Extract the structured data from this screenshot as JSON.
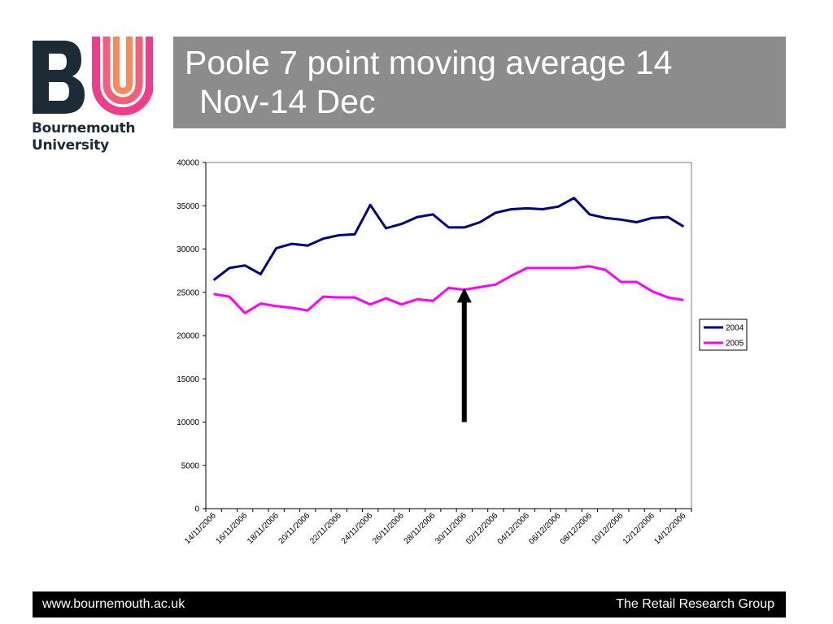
{
  "logo": {
    "line1": "Bournemouth",
    "line2": "University",
    "colors": {
      "b": "#1d2b36",
      "u_outer": "#ee3d8b",
      "u_inner": "#f47b57"
    }
  },
  "header": {
    "title_line1": "Poole 7 point moving average 14",
    "title_line2": "Nov-14 Dec",
    "bar_color": "#8c8c8c"
  },
  "chart_data": {
    "type": "line",
    "title": "",
    "xlabel": "",
    "ylabel": "",
    "ylim": [
      0,
      40000
    ],
    "yticks": [
      0,
      5000,
      10000,
      15000,
      20000,
      25000,
      30000,
      35000,
      40000
    ],
    "x": [
      "14/11/2006",
      "15/11/2006",
      "16/11/2006",
      "17/11/2006",
      "18/11/2006",
      "19/11/2006",
      "20/11/2006",
      "21/11/2006",
      "22/11/2006",
      "23/11/2006",
      "24/11/2006",
      "25/11/2006",
      "26/11/2006",
      "27/11/2006",
      "28/11/2006",
      "29/11/2006",
      "30/11/2006",
      "01/12/2006",
      "02/12/2006",
      "03/12/2006",
      "04/12/2006",
      "05/12/2006",
      "06/12/2006",
      "07/12/2006",
      "08/12/2006",
      "09/12/2006",
      "10/12/2006",
      "11/12/2006",
      "12/12/2006",
      "13/12/2006",
      "14/12/2006"
    ],
    "xtick_labels": [
      "14/11/2006",
      "16/11/2006",
      "18/11/2006",
      "20/11/2006",
      "22/11/2006",
      "24/11/2006",
      "26/11/2006",
      "28/11/2006",
      "30/11/2006",
      "02/12/2006",
      "04/12/2006",
      "06/12/2006",
      "08/12/2006",
      "10/12/2006",
      "12/12/2006",
      "14/12/2006"
    ],
    "series": [
      {
        "name": "2004",
        "color": "#000080",
        "values": [
          26400,
          27800,
          28100,
          27100,
          30100,
          30600,
          30400,
          31200,
          31600,
          31700,
          35100,
          32400,
          32900,
          33700,
          34000,
          32500,
          32500,
          33100,
          34200,
          34600,
          34700,
          34600,
          34900,
          35900,
          34000,
          33600,
          33400,
          33100,
          33600,
          33700,
          32600
        ]
      },
      {
        "name": "2005",
        "color": "#ff00ff",
        "values": [
          24800,
          24500,
          22600,
          23700,
          23400,
          23200,
          22900,
          24500,
          24400,
          24400,
          23600,
          24300,
          23600,
          24200,
          24000,
          25500,
          25300,
          25600,
          25900,
          26900,
          27800,
          27800,
          27800,
          27800,
          28000,
          27600,
          26200,
          26200,
          25100,
          24400,
          24100
        ]
      }
    ],
    "annotations": [
      {
        "type": "arrow",
        "x": "30/11/2006",
        "y_from": 10000,
        "y_to": 25500,
        "color": "#000000"
      }
    ],
    "grid": false,
    "legend_position": "right"
  },
  "footer": {
    "url": "www.bournemouth.ac.uk",
    "group": "The Retail Research Group"
  }
}
